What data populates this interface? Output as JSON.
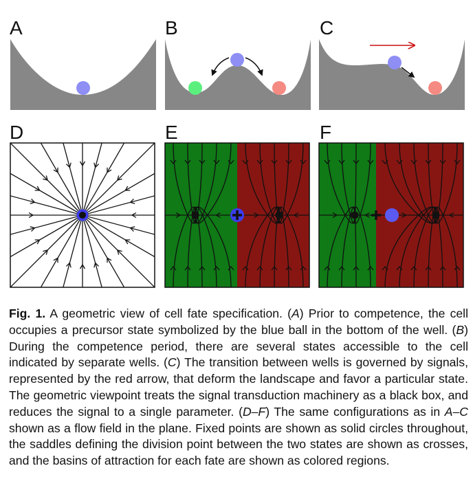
{
  "panels": {
    "A": "A",
    "B": "B",
    "C": "C",
    "D": "D",
    "E": "E",
    "F": "F"
  },
  "colors": {
    "landscape": "#878787",
    "ball_blue": "#8e8ef5",
    "ball_green": "#5bf07e",
    "ball_red": "#f58a82",
    "signal_arrow": "#cc1111",
    "basin_green": "#0f7a16",
    "basin_red": "#871612",
    "flow_line": "#111111",
    "state_blue": "#3c3ced"
  },
  "caption": {
    "fig_label": "Fig. 1.",
    "segments": [
      {
        "t": "   A geometric view of cell fate specification. (",
        "i": false
      },
      {
        "t": "A",
        "i": true
      },
      {
        "t": ") Prior to competence, the cell occupies a precursor state symbolized by the blue ball in the bottom of the well. (",
        "i": false
      },
      {
        "t": "B",
        "i": true
      },
      {
        "t": ") During the competence period, there are several states accessible to the cell indicated by separate wells. (",
        "i": false
      },
      {
        "t": "C",
        "i": true
      },
      {
        "t": ") The transition between wells is governed by signals, represented by the red arrow, that deform the landscape and favor a particular state. The geometric viewpoint treats the signal transduction machinery as a black box, and reduces the signal to a single parameter. (",
        "i": false
      },
      {
        "t": "D–F",
        "i": true
      },
      {
        "t": ") The same configurations as in ",
        "i": false
      },
      {
        "t": "A–C",
        "i": true
      },
      {
        "t": " shown as a flow field in the plane. Fixed points are shown as solid circles throughout, the saddles defining the division point between the two states are shown as crosses, and the basins of attraction for each fate are shown as colored regions.",
        "i": false
      }
    ]
  }
}
